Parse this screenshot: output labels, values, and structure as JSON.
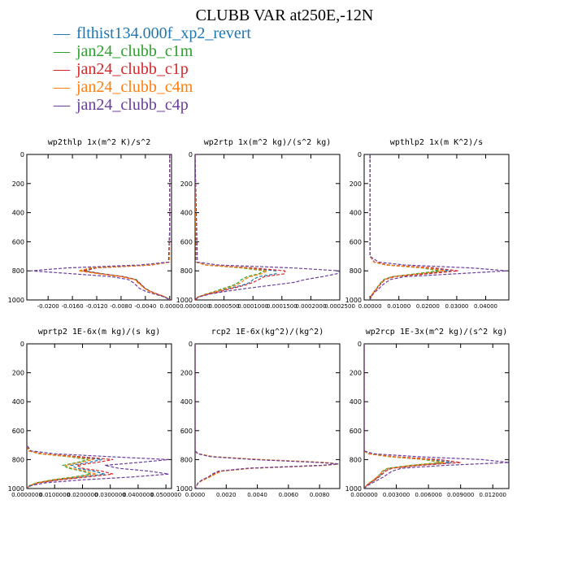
{
  "title": "CLUBB VAR at250E,-12N",
  "legend": [
    {
      "label": "flthist134.000f_xp2_revert",
      "color": "#1f77b4"
    },
    {
      "label": "jan24_clubb_c1m",
      "color": "#2ca02c"
    },
    {
      "label": "jan24_clubb_c1p",
      "color": "#d62728"
    },
    {
      "label": "jan24_clubb_c4m",
      "color": "#ff7f0e"
    },
    {
      "label": "jan24_clubb_c4p",
      "color": "#6a3d9a"
    }
  ],
  "chart_data": [
    {
      "type": "line",
      "title": "wp2thlp  1x(m^2 K)/s^2",
      "xlim": [
        -0.0235,
        0.0003
      ],
      "ylim": [
        1000,
        0
      ],
      "xticks": [
        -0.02,
        -0.016,
        -0.012,
        -0.008,
        -0.004,
        0.0
      ],
      "xtick_labels": [
        "-0.0200",
        "-0.0160",
        "-0.0120",
        "-0.0080",
        "-0.0040",
        "0.0000"
      ],
      "yticks": [
        0,
        200,
        400,
        600,
        800,
        1000
      ],
      "ytick_labels": [
        "0",
        "200",
        "400",
        "600",
        "800",
        "1000"
      ],
      "y": [
        0,
        500,
        740,
        760,
        780,
        800,
        820,
        840,
        860,
        880,
        900,
        920,
        940,
        960,
        975,
        990,
        1000
      ],
      "series": [
        {
          "values": [
            0,
            0,
            -0.0001,
            -0.003,
            -0.012,
            -0.014,
            -0.011,
            -0.0075,
            -0.0055,
            -0.005,
            -0.0045,
            -0.004,
            -0.0032,
            -0.002,
            -0.001,
            -0.0003,
            0
          ]
        },
        {
          "values": [
            0,
            0,
            -0.0001,
            -0.0031,
            -0.0125,
            -0.0146,
            -0.0115,
            -0.0078,
            -0.0057,
            -0.0052,
            -0.0046,
            -0.0041,
            -0.0033,
            -0.002,
            -0.001,
            -0.0003,
            0
          ]
        },
        {
          "values": [
            0,
            0,
            -0.0001,
            -0.003,
            -0.0122,
            -0.0143,
            -0.0112,
            -0.0077,
            -0.0056,
            -0.0051,
            -0.0046,
            -0.0041,
            -0.0032,
            -0.002,
            -0.001,
            -0.0003,
            0
          ]
        },
        {
          "values": [
            0,
            0,
            -0.0001,
            -0.0032,
            -0.013,
            -0.015,
            -0.0118,
            -0.008,
            -0.0058,
            -0.0053,
            -0.0047,
            -0.0042,
            -0.0034,
            -0.0021,
            -0.001,
            -0.0003,
            0
          ]
        },
        {
          "values": [
            0,
            0,
            -0.0002,
            -0.005,
            -0.017,
            -0.0228,
            -0.016,
            -0.0095,
            -0.0068,
            -0.006,
            -0.0055,
            -0.005,
            -0.004,
            -0.0025,
            -0.0012,
            -0.0004,
            0
          ]
        }
      ]
    },
    {
      "type": "line",
      "title": "wp2rtp  1x(m^2 kg)/(s^2 kg)",
      "xlim": [
        0,
        0.00025
      ],
      "ylim": [
        1000,
        0
      ],
      "xticks": [
        0,
        5e-05,
        0.0001,
        0.00015,
        0.0002,
        0.00025
      ],
      "xtick_labels": [
        "0.0000000",
        "0.0000500",
        "0.0001000",
        "0.0001500",
        "0.0002000",
        "0.0002500"
      ],
      "yticks": [
        0,
        200,
        400,
        600,
        800,
        1000
      ],
      "ytick_labels": [
        "0",
        "200",
        "400",
        "600",
        "800",
        "1000"
      ],
      "y": [
        0,
        740,
        760,
        780,
        800,
        820,
        840,
        860,
        880,
        900,
        920,
        940,
        960,
        980,
        1000
      ],
      "series": [
        {
          "values": [
            0,
            2e-06,
            2e-05,
            9e-05,
            0.00014,
            0.00014,
            0.00011,
            0.0001,
            9.5e-05,
            8e-05,
            6e-05,
            4e-05,
            2e-05,
            5e-06,
            0
          ]
        },
        {
          "values": [
            0,
            2e-06,
            1.8e-05,
            8e-05,
            0.00012,
            0.00011,
            9e-05,
            8e-05,
            7.5e-05,
            6.5e-05,
            5e-05,
            3.5e-05,
            1.8e-05,
            5e-06,
            0
          ]
        },
        {
          "values": [
            0,
            2e-06,
            2e-05,
            0.0001,
            0.000155,
            0.000155,
            0.00012,
            0.00011,
            0.0001,
            8.5e-05,
            6.5e-05,
            4.5e-05,
            2.2e-05,
            5e-06,
            0
          ]
        },
        {
          "values": [
            0,
            2e-06,
            1.8e-05,
            8.5e-05,
            0.000125,
            0.000115,
            9.5e-05,
            8.5e-05,
            8e-05,
            7e-05,
            5.5e-05,
            3.8e-05,
            2e-05,
            5e-06,
            0
          ]
        },
        {
          "values": [
            0,
            4e-06,
            4e-05,
            0.00017,
            0.00025,
            0.000245,
            0.00022,
            0.00019,
            0.00017,
            0.00013,
            9e-05,
            5.5e-05,
            2.5e-05,
            6e-06,
            0
          ]
        }
      ]
    },
    {
      "type": "line",
      "title": "wpthlp2  1x(m K^2)/s",
      "xlim": [
        -0.002,
        0.048
      ],
      "ylim": [
        1000,
        0
      ],
      "xticks": [
        0,
        0.01,
        0.02,
        0.03,
        0.04
      ],
      "xtick_labels": [
        "0.00000",
        "0.01000",
        "0.02000",
        "0.03000",
        "0.04000"
      ],
      "yticks": [
        0,
        200,
        400,
        600,
        800,
        1000
      ],
      "ytick_labels": [
        "0",
        "200",
        "400",
        "600",
        "800",
        "1000"
      ],
      "y": [
        0,
        700,
        740,
        760,
        780,
        800,
        820,
        840,
        860,
        880,
        900,
        920,
        950,
        975,
        1000
      ],
      "series": [
        {
          "values": [
            0,
            0,
            0.0015,
            0.006,
            0.02,
            0.028,
            0.018,
            0.008,
            0.005,
            0.004,
            0.0032,
            0.0024,
            0.0012,
            0.0004,
            0
          ]
        },
        {
          "values": [
            0,
            0,
            0.0014,
            0.0055,
            0.018,
            0.024,
            0.016,
            0.0075,
            0.0048,
            0.0038,
            0.003,
            0.0023,
            0.0011,
            0.0004,
            0
          ]
        },
        {
          "values": [
            0,
            0,
            0.0016,
            0.0065,
            0.022,
            0.0305,
            0.02,
            0.0085,
            0.0052,
            0.0042,
            0.0033,
            0.0025,
            0.0012,
            0.0004,
            0
          ]
        },
        {
          "values": [
            0,
            0,
            0.0014,
            0.0058,
            0.019,
            0.026,
            0.017,
            0.0078,
            0.005,
            0.004,
            0.0031,
            0.0024,
            0.0011,
            0.0004,
            0
          ]
        },
        {
          "values": [
            0,
            0,
            0.003,
            0.012,
            0.035,
            0.0475,
            0.03,
            0.012,
            0.007,
            0.0055,
            0.0042,
            0.0032,
            0.0015,
            0.0005,
            0
          ]
        }
      ]
    },
    {
      "type": "line",
      "title": "wprtp2  1E-6x(m kg)/(s kg)",
      "xlim": [
        0,
        0.052
      ],
      "ylim": [
        1000,
        0
      ],
      "xticks": [
        0,
        0.01,
        0.02,
        0.03,
        0.04,
        0.05
      ],
      "xtick_labels": [
        "0.0000000",
        "0.0100000",
        "0.0200000",
        "0.0300000",
        "0.0400000",
        "0.0500000"
      ],
      "yticks": [
        0,
        200,
        400,
        600,
        800,
        1000
      ],
      "ytick_labels": [
        "0",
        "200",
        "400",
        "600",
        "800",
        "1000"
      ],
      "y": [
        0,
        700,
        740,
        760,
        780,
        800,
        820,
        840,
        860,
        880,
        900,
        920,
        940,
        960,
        980,
        1000
      ],
      "series": [
        {
          "values": [
            0,
            0,
            0.0008,
            0.005,
            0.017,
            0.027,
            0.022,
            0.016,
            0.018,
            0.024,
            0.028,
            0.02,
            0.011,
            0.004,
            0.001,
            0
          ]
        },
        {
          "values": [
            0,
            0,
            0.0007,
            0.0045,
            0.015,
            0.022,
            0.018,
            0.013,
            0.015,
            0.02,
            0.023,
            0.017,
            0.009,
            0.0035,
            0.001,
            0
          ]
        },
        {
          "values": [
            0,
            0,
            0.0008,
            0.0055,
            0.019,
            0.031,
            0.025,
            0.018,
            0.02,
            0.027,
            0.031,
            0.022,
            0.012,
            0.0045,
            0.001,
            0
          ]
        },
        {
          "values": [
            0,
            0,
            0.0007,
            0.0048,
            0.016,
            0.024,
            0.019,
            0.014,
            0.016,
            0.021,
            0.025,
            0.018,
            0.0095,
            0.0037,
            0.001,
            0
          ]
        },
        {
          "values": [
            0,
            0,
            0.0015,
            0.01,
            0.03,
            0.051,
            0.04,
            0.028,
            0.033,
            0.044,
            0.051,
            0.038,
            0.02,
            0.007,
            0.0015,
            0
          ]
        }
      ]
    },
    {
      "type": "line",
      "title": "rcp2  1E-6x(kg^2)/(kg^2)",
      "xlim": [
        0,
        0.0093
      ],
      "ylim": [
        1000,
        0
      ],
      "xticks": [
        0,
        0.002,
        0.004,
        0.006,
        0.008
      ],
      "xtick_labels": [
        "0.0000",
        "0.0020",
        "0.0040",
        "0.0060",
        "0.0080"
      ],
      "yticks": [
        0,
        200,
        400,
        600,
        800,
        1000
      ],
      "ytick_labels": [
        "0",
        "200",
        "400",
        "600",
        "800",
        "1000"
      ],
      "y": [
        0,
        740,
        760,
        780,
        800,
        820,
        830,
        840,
        860,
        880,
        900,
        920,
        940,
        960,
        1000
      ],
      "series": [
        {
          "values": [
            0,
            0,
            0.0002,
            0.0011,
            0.004,
            0.0082,
            0.0092,
            0.0082,
            0.0035,
            0.0016,
            0.0012,
            0.0009,
            0.0005,
            0.0002,
            0
          ]
        },
        {
          "values": [
            0,
            0,
            0.00022,
            0.0012,
            0.0042,
            0.0083,
            0.0092,
            0.0083,
            0.0036,
            0.0017,
            0.0013,
            0.00095,
            0.00055,
            0.0002,
            0
          ]
        },
        {
          "values": [
            0,
            0,
            0.0002,
            0.0011,
            0.0041,
            0.0082,
            0.0092,
            0.0082,
            0.0035,
            0.0016,
            0.0012,
            0.0009,
            0.0005,
            0.0002,
            0
          ]
        },
        {
          "values": [
            0,
            0,
            0.00022,
            0.0012,
            0.0043,
            0.0084,
            0.0092,
            0.0084,
            0.0036,
            0.0017,
            0.0013,
            0.00095,
            0.00055,
            0.0002,
            0
          ]
        },
        {
          "values": [
            0,
            0,
            0.00018,
            0.001,
            0.0038,
            0.008,
            0.0092,
            0.0081,
            0.0034,
            0.0015,
            0.0011,
            0.00085,
            0.00045,
            0.0002,
            0
          ]
        }
      ]
    },
    {
      "type": "line",
      "title": "wp2rcp  1E-3x(m^2 kg)/(s^2 kg)",
      "xlim": [
        0,
        0.0135
      ],
      "ylim": [
        1000,
        0
      ],
      "xticks": [
        0,
        0.003,
        0.006,
        0.009,
        0.012
      ],
      "xtick_labels": [
        "0.000000",
        "0.003000",
        "0.006000",
        "0.009000",
        "0.012000"
      ],
      "yticks": [
        0,
        200,
        400,
        600,
        800,
        1000
      ],
      "ytick_labels": [
        "0",
        "200",
        "400",
        "600",
        "800",
        "1000"
      ],
      "y": [
        0,
        740,
        760,
        780,
        800,
        820,
        840,
        860,
        880,
        900,
        920,
        940,
        960,
        980,
        1000
      ],
      "series": [
        {
          "values": [
            0,
            0,
            0.0004,
            0.0025,
            0.0062,
            0.0082,
            0.0048,
            0.0024,
            0.0018,
            0.0016,
            0.0013,
            0.001,
            0.0006,
            0.0002,
            0
          ]
        },
        {
          "values": [
            0,
            0,
            0.0004,
            0.0023,
            0.0056,
            0.0072,
            0.0043,
            0.0022,
            0.0017,
            0.0015,
            0.0012,
            0.0009,
            0.0005,
            0.0002,
            0
          ]
        },
        {
          "values": [
            0,
            0,
            0.0005,
            0.0028,
            0.007,
            0.009,
            0.0052,
            0.0026,
            0.002,
            0.0017,
            0.0014,
            0.001,
            0.0006,
            0.0002,
            0
          ]
        },
        {
          "values": [
            0,
            0,
            0.0004,
            0.0024,
            0.0058,
            0.0075,
            0.0045,
            0.0023,
            0.0017,
            0.0015,
            0.0012,
            0.0009,
            0.0005,
            0.0002,
            0
          ]
        },
        {
          "values": [
            0,
            0,
            0.0009,
            0.005,
            0.011,
            0.0135,
            0.0075,
            0.0035,
            0.0026,
            0.0022,
            0.0018,
            0.0013,
            0.0008,
            0.0003,
            0
          ]
        }
      ]
    }
  ]
}
